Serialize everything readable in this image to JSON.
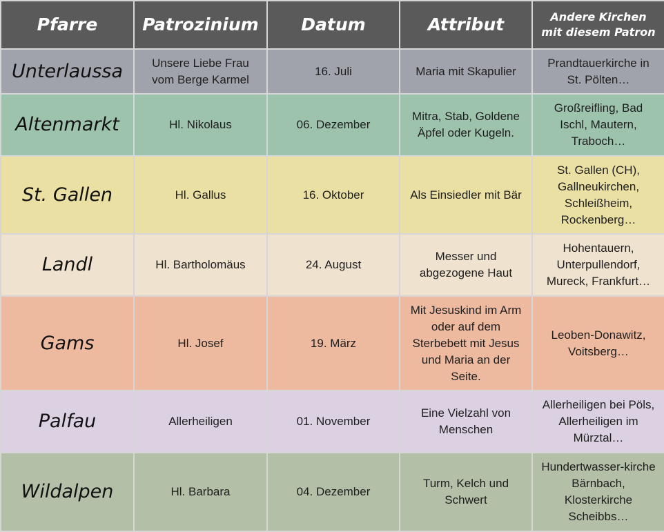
{
  "headers": [
    "Pfarre",
    "Patrozinium",
    "Datum",
    "Attribut",
    "Andere Kirchen mit diesem Patron"
  ],
  "rows": [
    {
      "pfarre": "Unterlaussa",
      "patrozinium": "Unsere Liebe Frau vom Berge Karmel",
      "datum": "16. Juli",
      "attribut": "Maria mit Skapulier",
      "andere": "Prandtauerkirche in St. Pölten…",
      "color": "#a0a3ab"
    },
    {
      "pfarre": "Altenmarkt",
      "patrozinium": "Hl. Nikolaus",
      "datum": "06. Dezember",
      "attribut": "Mitra, Stab, Goldene Äpfel oder Kugeln.",
      "andere": "Großreifling, Bad Ischl, Mautern, Traboch…",
      "color": "#9dc3ad"
    },
    {
      "pfarre": "St. Gallen",
      "patrozinium": "Hl. Gallus",
      "datum": "16. Oktober",
      "attribut": "Als Einsiedler mit Bär",
      "andere": "St. Gallen (CH), Gallneukirchen, Schleißheim, Rockenberg…",
      "color": "#ebe0a3"
    },
    {
      "pfarre": "Landl",
      "patrozinium": "Hl. Bartholomäus",
      "datum": "24. August",
      "attribut": "Messer und abgezogene Haut",
      "andere": "Hohentauern, Unterpullendorf, Mureck, Frankfurt…",
      "color": "#efe3cf"
    },
    {
      "pfarre": "Gams",
      "patrozinium": "Hl. Josef",
      "datum": "19. März",
      "attribut": "Mit Jesuskind im Arm oder auf dem Sterbebett mit Jesus und Maria an der Seite.",
      "andere": "Leoben-Donawitz, Voitsberg…",
      "color": "#edbaa0"
    },
    {
      "pfarre": "Palfau",
      "patrozinium": "Allerheiligen",
      "datum": "01. November",
      "attribut": "Eine Vielzahl von Menschen",
      "andere": "Allerheiligen bei Pöls, Allerheiligen im Mürztal…",
      "color": "#dcd1e3"
    },
    {
      "pfarre": "Wildalpen",
      "patrozinium": "Hl. Barbara",
      "datum": "04. Dezember",
      "attribut": "Turm, Kelch und Schwert",
      "andere": "Hundertwasser-kirche Bärnbach, Klosterkirche Scheibbs…",
      "color": "#b3bfa7"
    }
  ],
  "header_color": "#5a5a5a"
}
